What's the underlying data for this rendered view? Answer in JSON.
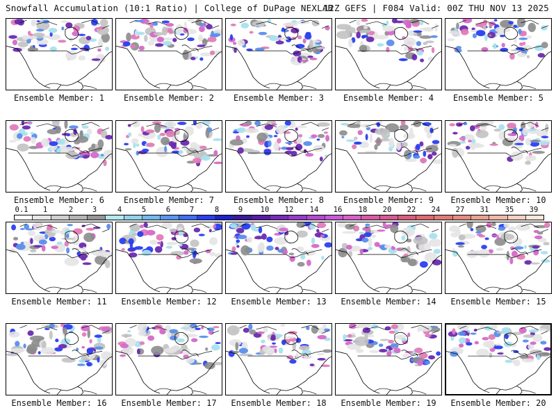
{
  "header": {
    "title": "Snowfall Accumulation (10:1 Ratio) | College of DuPage NEXLAB",
    "run_info": "12Z GEFS | F084 Valid: 00Z THU NOV 13 2025"
  },
  "members": [
    "Ensemble Member: 1",
    "Ensemble Member: 2",
    "Ensemble Member: 3",
    "Ensemble Member: 4",
    "Ensemble Member: 5",
    "Ensemble Member: 6",
    "Ensemble Member: 7",
    "Ensemble Member: 8",
    "Ensemble Member: 9",
    "Ensemble Member: 10",
    "Ensemble Member: 11",
    "Ensemble Member: 12",
    "Ensemble Member: 13",
    "Ensemble Member: 14",
    "Ensemble Member: 15",
    "Ensemble Member: 16",
    "Ensemble Member: 17",
    "Ensemble Member: 18",
    "Ensemble Member: 19",
    "Ensemble Member: 20"
  ],
  "legend": {
    "labels": [
      "0.1",
      "1",
      "2",
      "3",
      "4",
      "5",
      "6",
      "7",
      "8",
      "9",
      "10",
      "12",
      "14",
      "16",
      "18",
      "20",
      "22",
      "24",
      "27",
      "31",
      "35",
      "39"
    ],
    "colors": [
      "#ffffff",
      "#e6e6e6",
      "#cfcfcf",
      "#b4b4b4",
      "#969696",
      "#b3e8f0",
      "#8fd3e8",
      "#74b8ec",
      "#5a96ec",
      "#3f6ff0",
      "#2a3ff0",
      "#1f22c8",
      "#3a1a9c",
      "#5a1aa8",
      "#7a2ab8",
      "#9a3ac8",
      "#b44ad0",
      "#c85ad8",
      "#d462c8",
      "#d65aa8",
      "#d65a90",
      "#d85c7c",
      "#dc6a70",
      "#e07a74",
      "#e48c80",
      "#e8a090",
      "#eeb8a8",
      "#f4d0c0",
      "#fae6dc"
    ]
  },
  "snow_colors": {
    "gray_light": "#e4e4e4",
    "gray_mid": "#c2c2c2",
    "gray_dark": "#8c8c8c",
    "cyan": "#a8e2ee",
    "blue": "#5a8eec",
    "blue_dark": "#2a3ff0",
    "purple": "#6a2ab0",
    "magenta": "#d46ac8",
    "pink": "#e07cb8"
  }
}
